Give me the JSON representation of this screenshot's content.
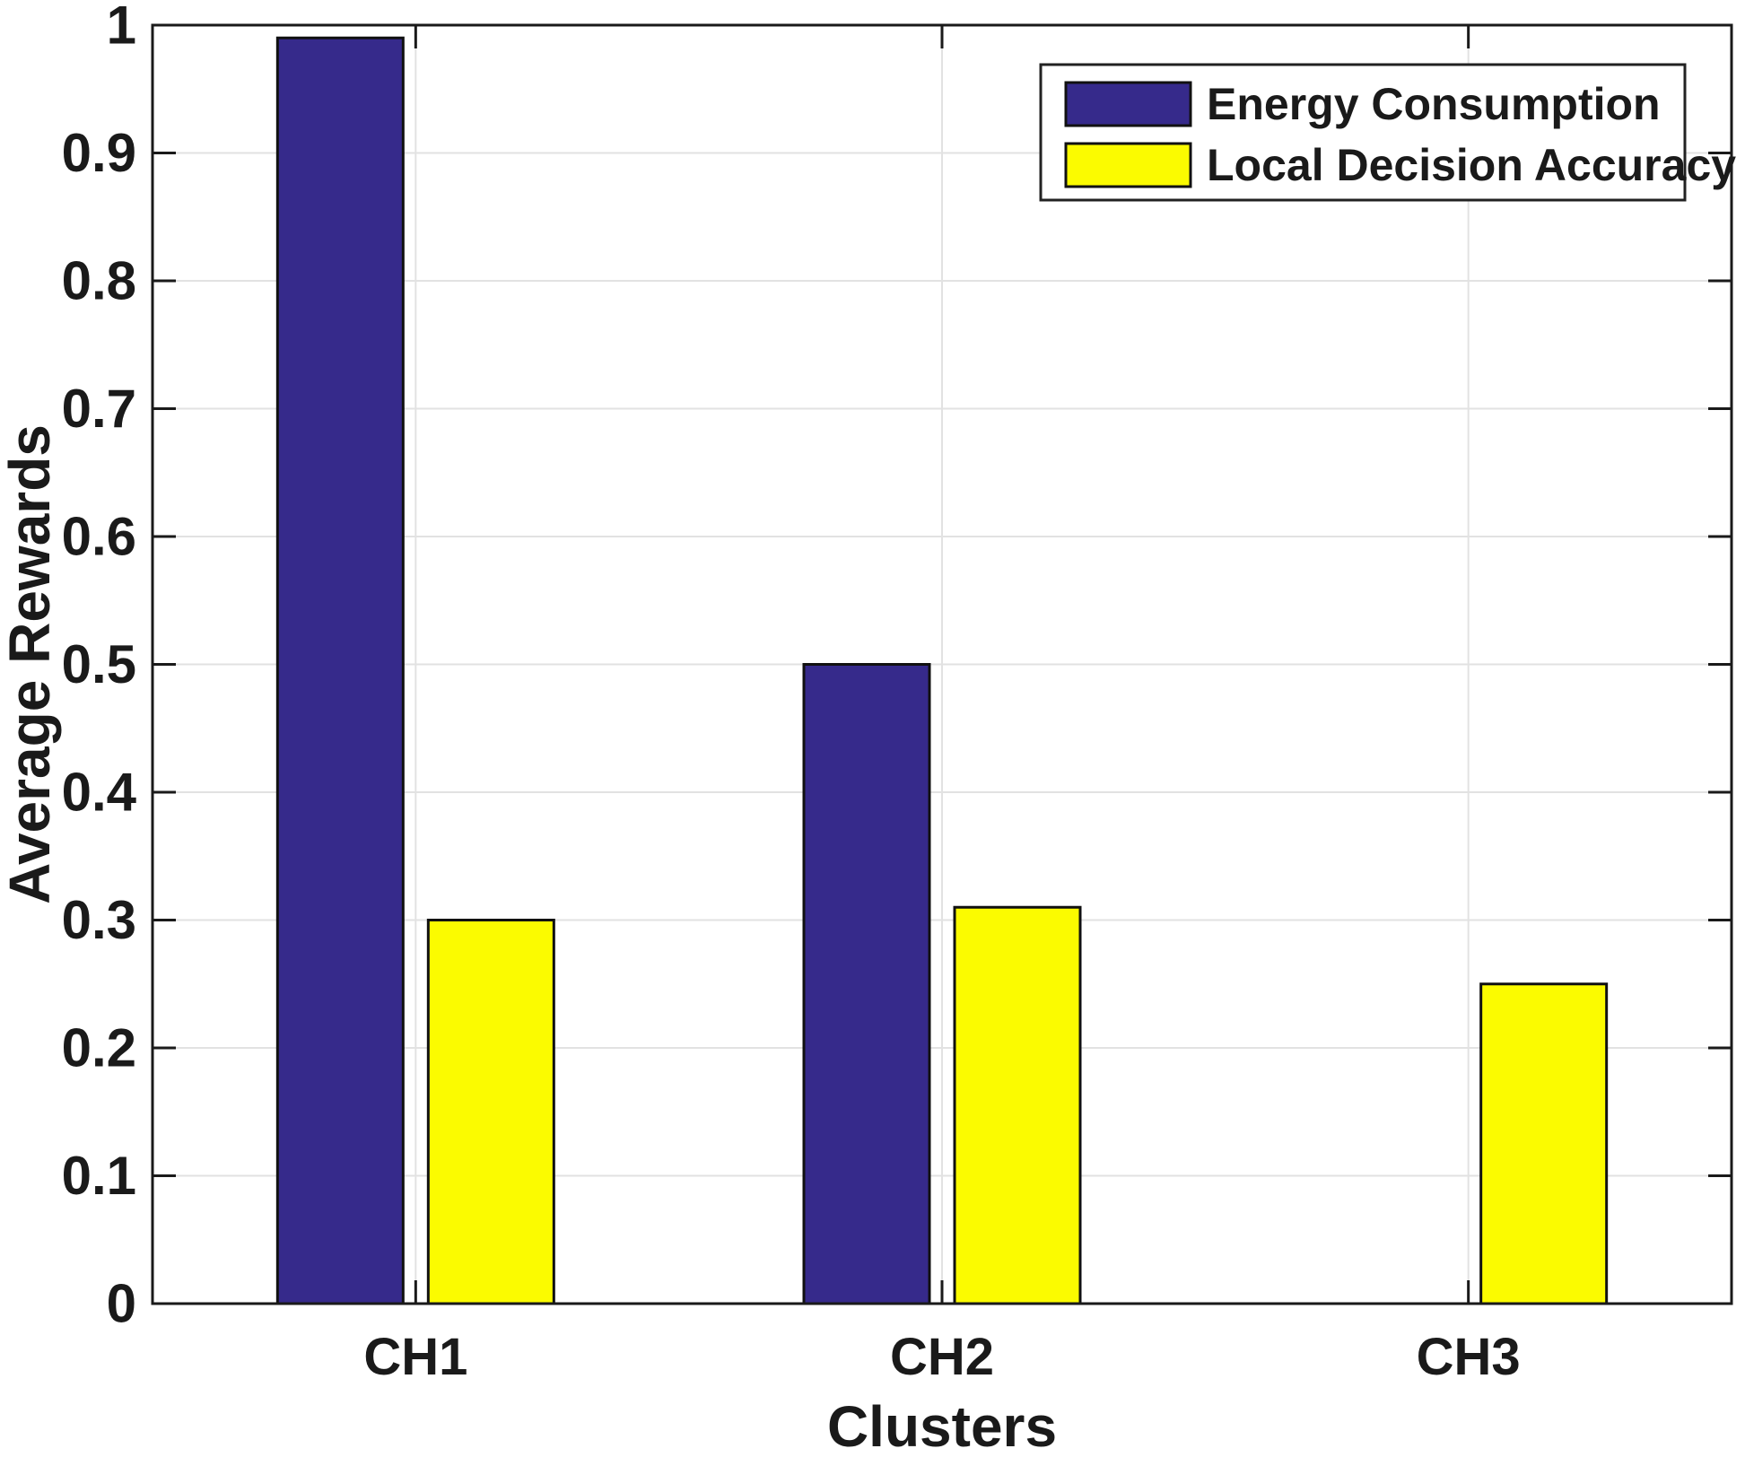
{
  "chart_data": {
    "type": "bar",
    "title": "",
    "categories": [
      "CH1",
      "CH2",
      "CH3"
    ],
    "series": [
      {
        "name": "Energy Consumption",
        "color": "#362A8B",
        "values": [
          0.99,
          0.5,
          0.0
        ]
      },
      {
        "name": "Local Decision Accuracy",
        "color": "#FBFB00",
        "values": [
          0.3,
          0.31,
          0.25
        ]
      }
    ],
    "xlabel": "Clusters",
    "ylabel": "Average Rewards",
    "ylim": [
      0,
      1
    ],
    "yticks": [
      0,
      0.1,
      0.2,
      0.3,
      0.4,
      0.5,
      0.6,
      0.7,
      0.8,
      0.9,
      1
    ],
    "ytick_labels": [
      "0",
      "0.1",
      "0.2",
      "0.3",
      "0.4",
      "0.5",
      "0.6",
      "0.7",
      "0.8",
      "0.9",
      "1"
    ],
    "grid": true,
    "legend_position": "top-right",
    "colors": {
      "bar_edge": "#111111",
      "axis_box": "#1a1a1a",
      "gridline": "#e2e2e2",
      "background": "#ffffff"
    }
  }
}
